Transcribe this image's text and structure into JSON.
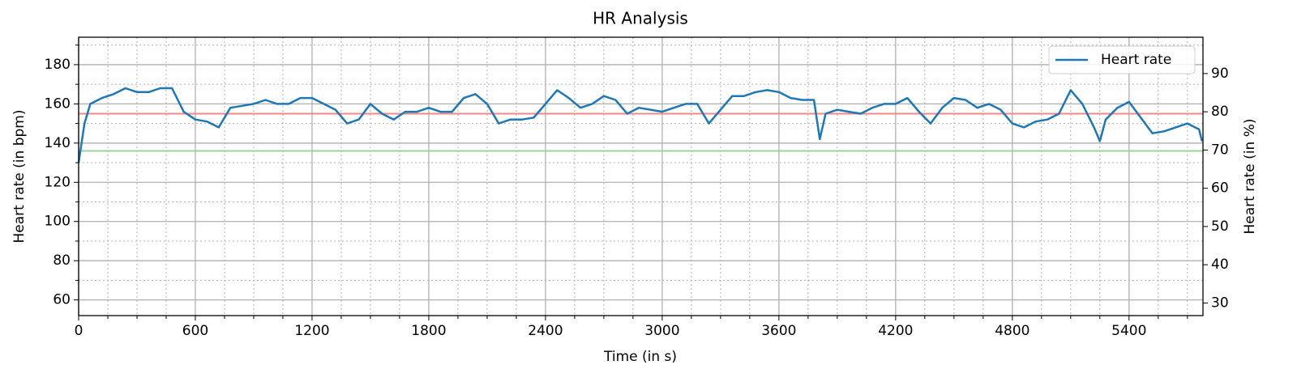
{
  "chart_data": {
    "type": "line",
    "title": "HR Analysis",
    "x_label": "Time (in s)",
    "y_label": "Heart rate (in bpm)",
    "y2_label": "Heart rate (in %)",
    "xlim": [
      0,
      5780
    ],
    "ylim": [
      52,
      194
    ],
    "y2lim": [
      26.7,
      99.5
    ],
    "xticks": [
      0,
      600,
      1200,
      1800,
      2400,
      3000,
      3600,
      4200,
      4800,
      5400
    ],
    "yticks": [
      60,
      80,
      100,
      120,
      140,
      160,
      180
    ],
    "y2ticks": [
      30,
      40,
      50,
      60,
      70,
      80,
      90
    ],
    "xminorticks": [
      150,
      300,
      450,
      750,
      900,
      1050,
      1350,
      1500,
      1650,
      1950,
      2100,
      2250,
      2550,
      2700,
      2850,
      3150,
      3300,
      3450,
      3750,
      3900,
      4050,
      4350,
      4500,
      4650,
      4950,
      5100,
      5250,
      5550,
      5700
    ],
    "yminorticks": [
      70,
      90,
      110,
      130,
      150,
      170,
      190
    ],
    "grid": true,
    "minor_grid": true,
    "legend": "upper right",
    "reference_lines": [
      {
        "value": 155,
        "color": "#f08a8a"
      },
      {
        "value": 136,
        "color": "#98d49a"
      }
    ],
    "series": [
      {
        "name": "Heart rate",
        "color": "#1f77b4",
        "x": [
          0,
          30,
          60,
          120,
          180,
          240,
          300,
          360,
          420,
          480,
          540,
          600,
          660,
          720,
          780,
          840,
          900,
          960,
          1020,
          1080,
          1140,
          1200,
          1260,
          1320,
          1380,
          1440,
          1500,
          1560,
          1620,
          1680,
          1740,
          1800,
          1860,
          1920,
          1980,
          2040,
          2100,
          2160,
          2220,
          2280,
          2340,
          2400,
          2460,
          2520,
          2580,
          2640,
          2700,
          2760,
          2820,
          2880,
          2940,
          3000,
          3060,
          3120,
          3180,
          3240,
          3300,
          3360,
          3420,
          3480,
          3540,
          3600,
          3660,
          3720,
          3780,
          3810,
          3840,
          3900,
          3960,
          4020,
          4080,
          4140,
          4200,
          4260,
          4320,
          4380,
          4440,
          4500,
          4560,
          4620,
          4680,
          4740,
          4800,
          4860,
          4920,
          4980,
          5040,
          5100,
          5160,
          5220,
          5250,
          5280,
          5340,
          5400,
          5460,
          5520,
          5580,
          5640,
          5700,
          5760,
          5775
        ],
        "values": [
          130,
          150,
          160,
          163,
          165,
          168,
          166,
          166,
          168,
          168,
          156,
          152,
          151,
          148,
          158,
          159,
          160,
          162,
          160,
          160,
          163,
          163,
          160,
          157,
          150,
          152,
          160,
          155,
          152,
          156,
          156,
          158,
          156,
          156,
          163,
          165,
          160,
          150,
          152,
          152,
          153,
          160,
          167,
          163,
          158,
          160,
          164,
          162,
          155,
          158,
          157,
          156,
          158,
          160,
          160,
          150,
          157,
          164,
          164,
          166,
          167,
          166,
          163,
          162,
          162,
          142,
          155,
          157,
          156,
          155,
          158,
          160,
          160,
          163,
          156,
          150,
          158,
          163,
          162,
          158,
          160,
          157,
          150,
          148,
          151,
          152,
          155,
          167,
          160,
          148,
          141,
          152,
          158,
          161,
          153,
          145,
          146,
          148,
          150,
          147,
          141
        ]
      }
    ]
  }
}
